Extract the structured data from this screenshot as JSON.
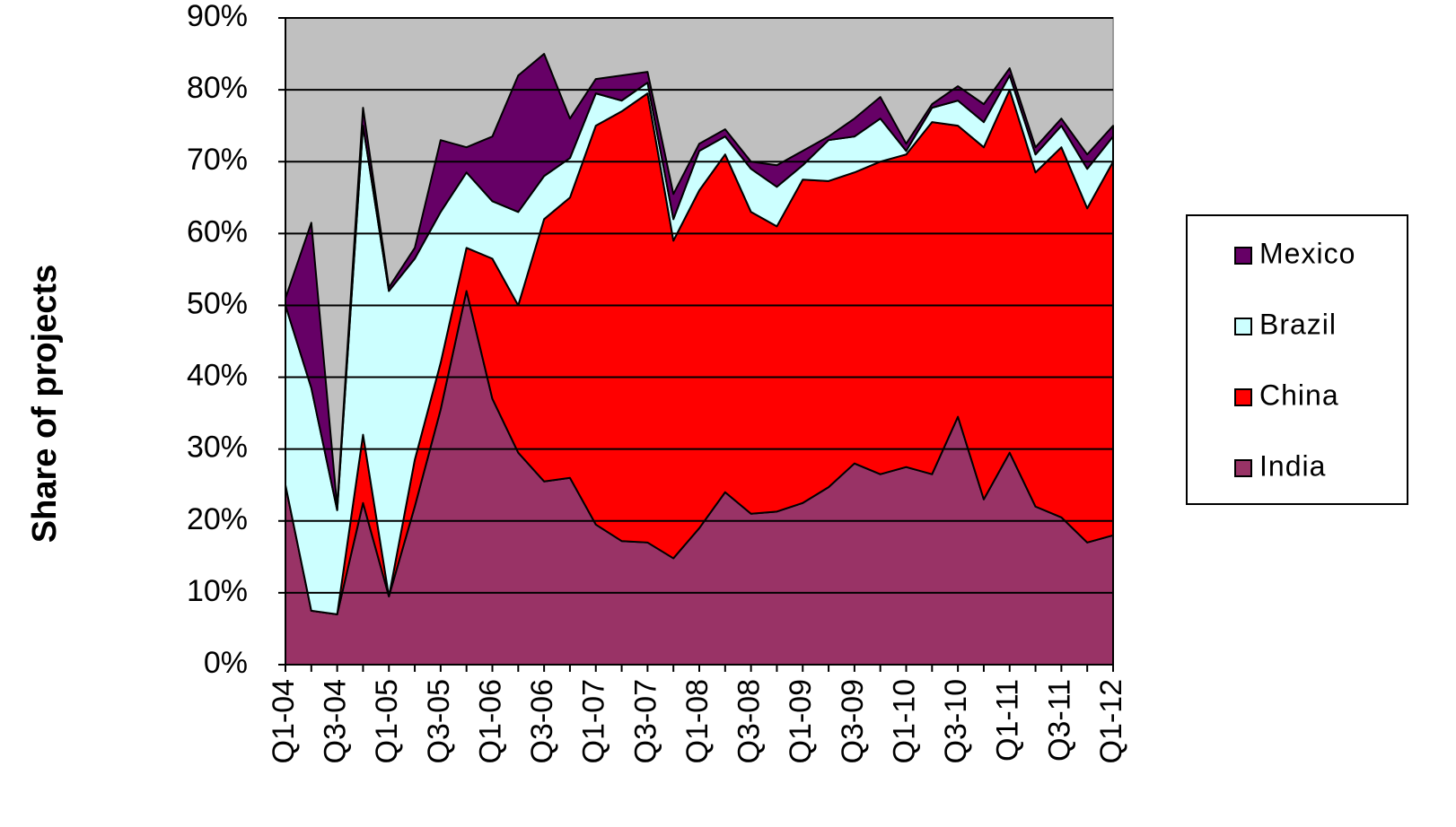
{
  "chart_data": {
    "type": "stacked_area",
    "y_label": "Share of projects",
    "categories": [
      "Q1-04",
      null,
      "Q3-04",
      null,
      "Q1-05",
      null,
      "Q3-05",
      null,
      "Q1-06",
      null,
      "Q3-06",
      null,
      "Q1-07",
      null,
      "Q3-07",
      null,
      "Q1-08",
      null,
      "Q3-08",
      null,
      "Q1-09",
      null,
      "Q3-09",
      null,
      "Q1-10",
      null,
      "Q3-10",
      null,
      "Q1-11",
      null,
      "Q3-11",
      null,
      "Q1-12"
    ],
    "series": [
      {
        "name": "India",
        "color": "#993366",
        "values": [
          25,
          7.5,
          7,
          22.5,
          9.5,
          22,
          35.5,
          52,
          37,
          29.5,
          25.5,
          26,
          19.5,
          17.2,
          17,
          14.8,
          19,
          24,
          21,
          21.3,
          22.5,
          24.7,
          28,
          26.5,
          27.5,
          26.5,
          34.5,
          23,
          29.5,
          22,
          20.5,
          17,
          18
        ]
      },
      {
        "name": "China",
        "color": "#ff0000",
        "values": [
          0,
          0,
          0,
          9.5,
          0,
          6.5,
          6.5,
          6,
          19.5,
          20.5,
          36.5,
          39,
          55.5,
          59.8,
          62.5,
          44.2,
          47,
          47,
          42,
          39.7,
          45,
          42.6,
          40.5,
          43.5,
          43.5,
          49,
          40.5,
          49,
          50.5,
          46.5,
          51.5,
          46.5,
          52
        ]
      },
      {
        "name": "Brazil",
        "color": "#ccffff",
        "values": [
          25,
          31,
          14.5,
          43,
          42.5,
          28,
          21,
          10.5,
          8,
          13,
          6,
          5.5,
          4.5,
          1.5,
          1.5,
          3,
          5.5,
          2.5,
          6,
          5.5,
          2,
          5.7,
          5,
          6,
          0.5,
          2,
          3.5,
          3.5,
          2,
          2.5,
          3,
          5.5,
          3.5
        ]
      },
      {
        "name": "Mexico",
        "color": "#660066",
        "values": [
          1,
          23,
          0.5,
          2.5,
          0.5,
          1.5,
          10,
          3.5,
          9,
          19,
          17,
          5.5,
          2,
          3.5,
          1.5,
          3.5,
          1,
          1,
          1,
          3,
          2,
          0.5,
          2.5,
          3,
          1,
          0.5,
          2,
          2.5,
          1,
          1,
          1,
          2,
          1.5
        ]
      }
    ],
    "ylim": [
      0,
      90
    ],
    "yticks": [
      {
        "value": 0,
        "label": "0%"
      },
      {
        "value": 10,
        "label": "10%"
      },
      {
        "value": 20,
        "label": "20%"
      },
      {
        "value": 30,
        "label": "30%"
      },
      {
        "value": 40,
        "label": "40%"
      },
      {
        "value": 50,
        "label": "50%"
      },
      {
        "value": 60,
        "label": "60%"
      },
      {
        "value": 70,
        "label": "70%"
      },
      {
        "value": 80,
        "label": "80%"
      },
      {
        "value": 90,
        "label": "90%"
      }
    ],
    "grid": true,
    "plot_background": "#c0c0c0",
    "legend": "right"
  }
}
